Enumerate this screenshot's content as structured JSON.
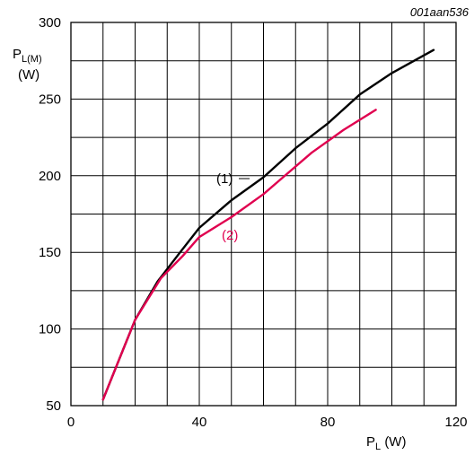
{
  "figure_code": "001aan536",
  "chart_data": {
    "type": "line",
    "ylabel": {
      "symbol": "P",
      "subscript": "L(M)",
      "unit": "(W)"
    },
    "xlabel": {
      "symbol": "P",
      "subscript": "L",
      "unit": "(W)"
    },
    "xlim": [
      0,
      120
    ],
    "ylim": [
      50,
      300
    ],
    "x_ticks": [
      0,
      40,
      80,
      120
    ],
    "y_ticks": [
      50,
      100,
      150,
      200,
      250,
      300
    ],
    "x_grid_step": 10,
    "y_grid_step": 25,
    "grid": true,
    "series": [
      {
        "name": "(1)",
        "color": "#000000",
        "points": [
          [
            10,
            54
          ],
          [
            15,
            80
          ],
          [
            20,
            106
          ],
          [
            27,
            131
          ],
          [
            34,
            150
          ],
          [
            40,
            166
          ],
          [
            50,
            184
          ],
          [
            60,
            199
          ],
          [
            70,
            218
          ],
          [
            80,
            234
          ],
          [
            90,
            253
          ],
          [
            100,
            267
          ],
          [
            113,
            282
          ]
        ]
      },
      {
        "name": "(2)",
        "color": "#e0004f",
        "points": [
          [
            10,
            54
          ],
          [
            15,
            80
          ],
          [
            20,
            106
          ],
          [
            28,
            133
          ],
          [
            35,
            148
          ],
          [
            40,
            160
          ],
          [
            50,
            173
          ],
          [
            60,
            188
          ],
          [
            65,
            197
          ],
          [
            75,
            215
          ],
          [
            85,
            230
          ],
          [
            95,
            243
          ]
        ]
      }
    ]
  }
}
